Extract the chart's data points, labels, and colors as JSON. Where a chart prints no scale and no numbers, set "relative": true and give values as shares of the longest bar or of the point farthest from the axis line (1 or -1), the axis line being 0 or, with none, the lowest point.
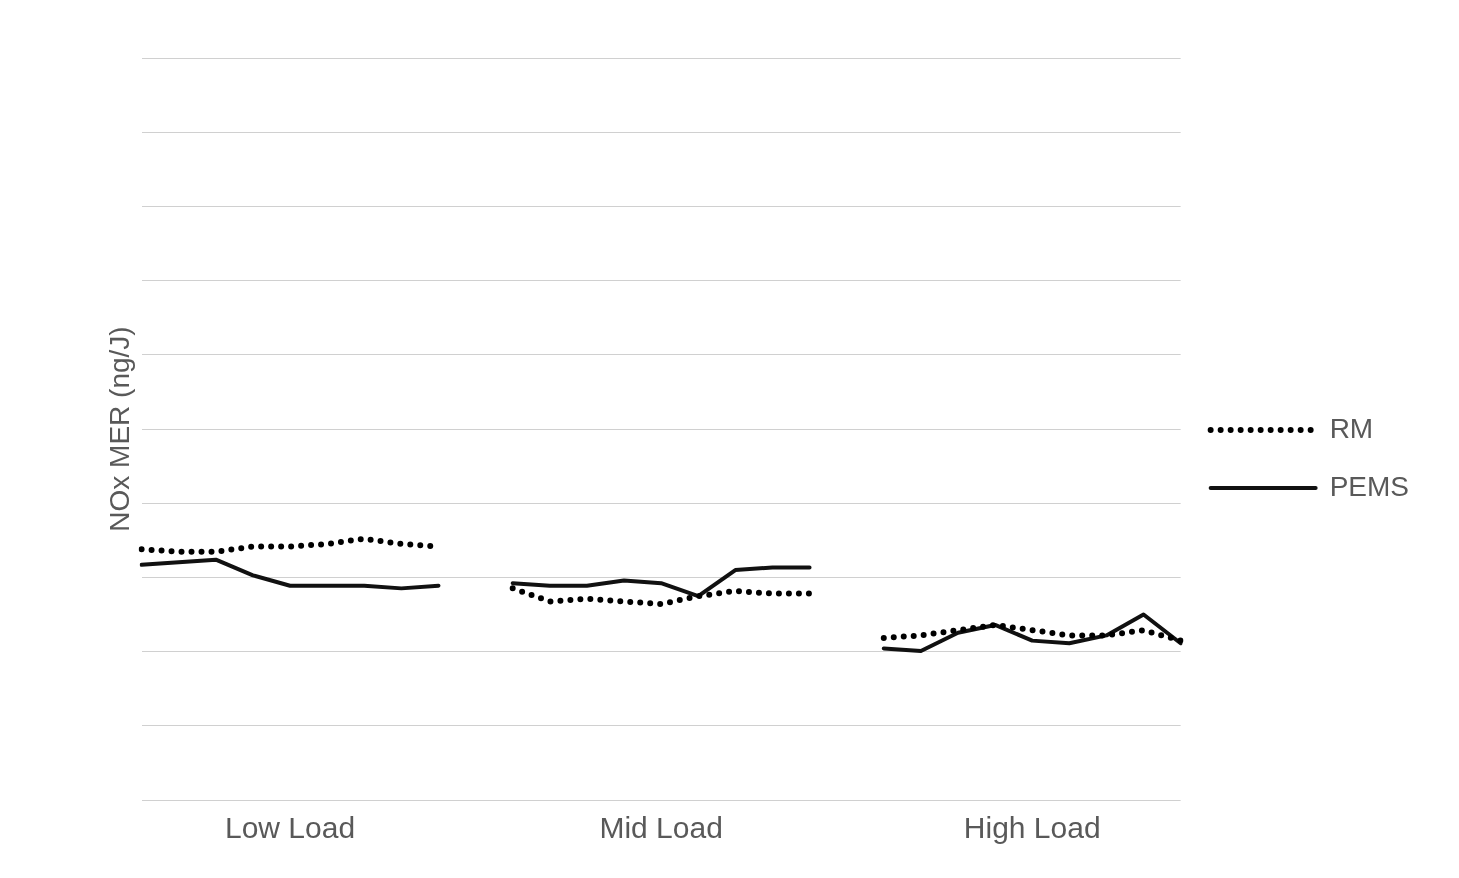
{
  "chart_data": {
    "type": "line",
    "ylabel": "NOx MER (ng/J)",
    "relative": true,
    "grid": "y",
    "legend": "right",
    "marker": "none",
    "categories": [
      null,
      null,
      null,
      null,
      "Low Load",
      null,
      null,
      null,
      null,
      null,
      null,
      null,
      null,
      null,
      "Mid Load",
      null,
      null,
      null,
      null,
      null,
      null,
      null,
      null,
      null,
      "High Load",
      null,
      null,
      null,
      null
    ],
    "series": [
      {
        "name": "RM",
        "color": "#000000",
        "line_style": "dotted",
        "values": [
          0.96,
          0.95,
          0.95,
          0.97,
          0.97,
          0.98,
          1.0,
          0.98,
          0.97,
          null,
          0.81,
          0.76,
          0.77,
          0.76,
          0.75,
          0.78,
          0.8,
          0.79,
          0.79,
          null,
          0.62,
          0.63,
          0.65,
          0.67,
          0.65,
          0.63,
          0.63,
          0.65,
          0.61
        ]
      },
      {
        "name": "PEMS",
        "color": "#111111",
        "line_style": "solid",
        "values": [
          0.9,
          0.91,
          0.92,
          0.86,
          0.82,
          0.82,
          0.82,
          0.81,
          0.82,
          null,
          0.83,
          0.82,
          0.82,
          0.84,
          0.83,
          0.78,
          0.88,
          0.89,
          0.89,
          null,
          0.58,
          0.57,
          0.64,
          0.67,
          0.61,
          0.6,
          0.63,
          0.71,
          0.6
        ]
      }
    ]
  }
}
